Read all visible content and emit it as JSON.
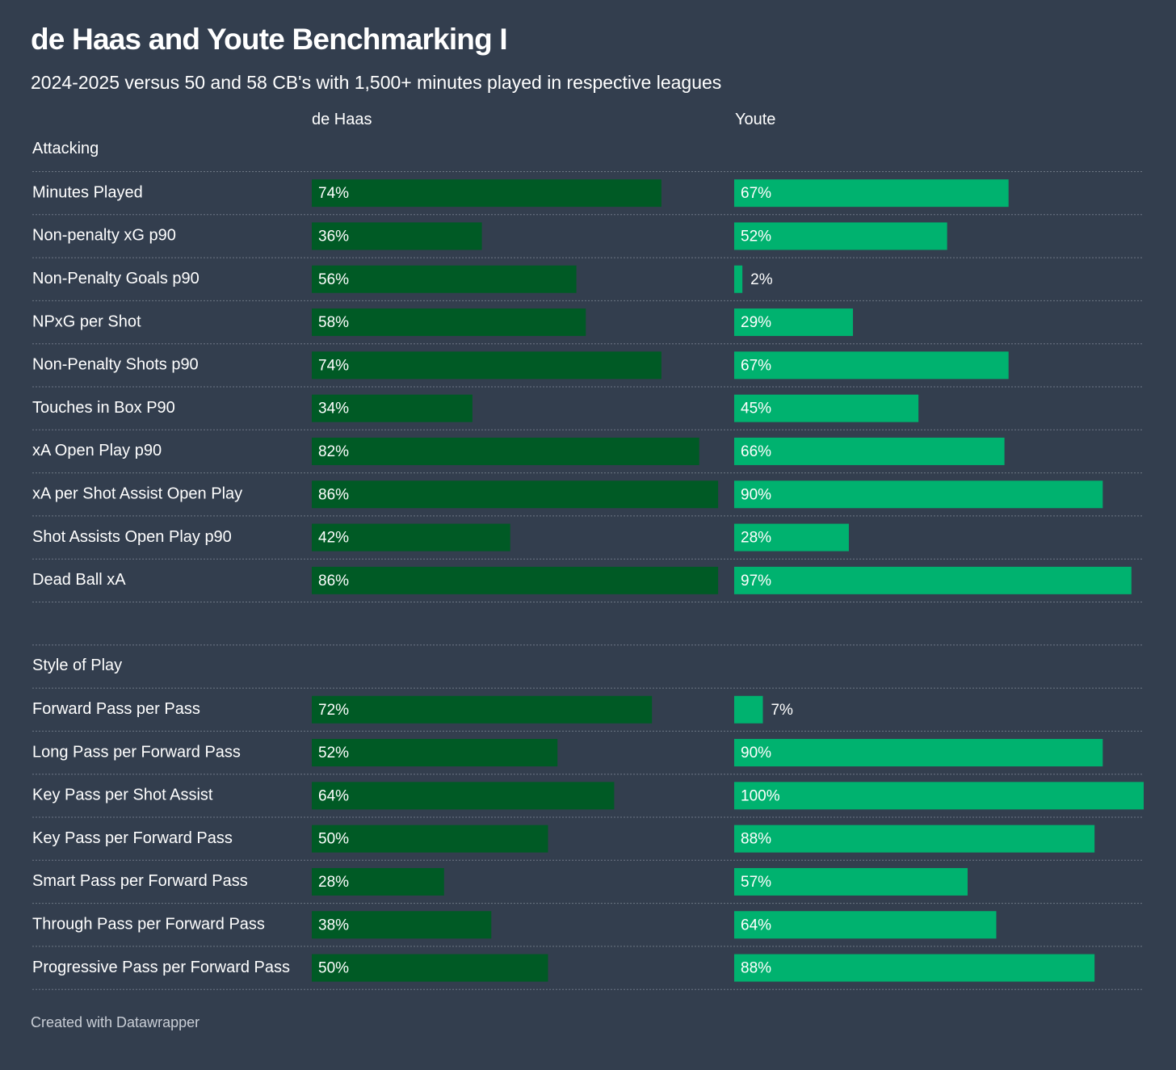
{
  "title": "de Haas and Youte Benchmarking I",
  "subtitle": "2024-2025 versus 50 and 58 CB's with 1,500+ minutes played in respective leagues",
  "footer": "Created with Datawrapper",
  "colors": {
    "background": "#333e4e",
    "de_haas_bar": "#005a25",
    "youte_bar": "#00b26f",
    "text": "#ffffff"
  },
  "chart_data": {
    "type": "bar",
    "orientation": "horizontal",
    "value_suffix": "%",
    "xlim": [
      0,
      100
    ],
    "columns": [
      "de Haas",
      "Youte"
    ],
    "sections": [
      {
        "label": "Attacking",
        "rows": [
          {
            "metric": "Minutes Played",
            "de_haas": 74,
            "youte": 67
          },
          {
            "metric": "Non-penalty xG p90",
            "de_haas": 36,
            "youte": 52
          },
          {
            "metric": "Non-Penalty Goals p90",
            "de_haas": 56,
            "youte": 2
          },
          {
            "metric": "NPxG per Shot",
            "de_haas": 58,
            "youte": 29
          },
          {
            "metric": "Non-Penalty Shots p90",
            "de_haas": 74,
            "youte": 67
          },
          {
            "metric": "Touches in Box P90",
            "de_haas": 34,
            "youte": 45
          },
          {
            "metric": "xA Open Play p90",
            "de_haas": 82,
            "youte": 66
          },
          {
            "metric": "xA per Shot Assist Open Play",
            "de_haas": 86,
            "youte": 90
          },
          {
            "metric": "Shot Assists Open Play p90",
            "de_haas": 42,
            "youte": 28
          },
          {
            "metric": "Dead Ball xA",
            "de_haas": 86,
            "youte": 97
          }
        ]
      },
      {
        "label": "Style of Play",
        "rows": [
          {
            "metric": "Forward Pass per Pass",
            "de_haas": 72,
            "youte": 7
          },
          {
            "metric": "Long Pass per Forward Pass",
            "de_haas": 52,
            "youte": 90
          },
          {
            "metric": "Key Pass per Shot Assist",
            "de_haas": 64,
            "youte": 100
          },
          {
            "metric": "Key Pass per Forward Pass",
            "de_haas": 50,
            "youte": 88
          },
          {
            "metric": "Smart Pass per Forward Pass",
            "de_haas": 28,
            "youte": 57
          },
          {
            "metric": "Through Pass per Forward Pass",
            "de_haas": 38,
            "youte": 64
          },
          {
            "metric": "Progressive Pass per Forward Pass",
            "de_haas": 50,
            "youte": 88
          }
        ]
      }
    ]
  }
}
